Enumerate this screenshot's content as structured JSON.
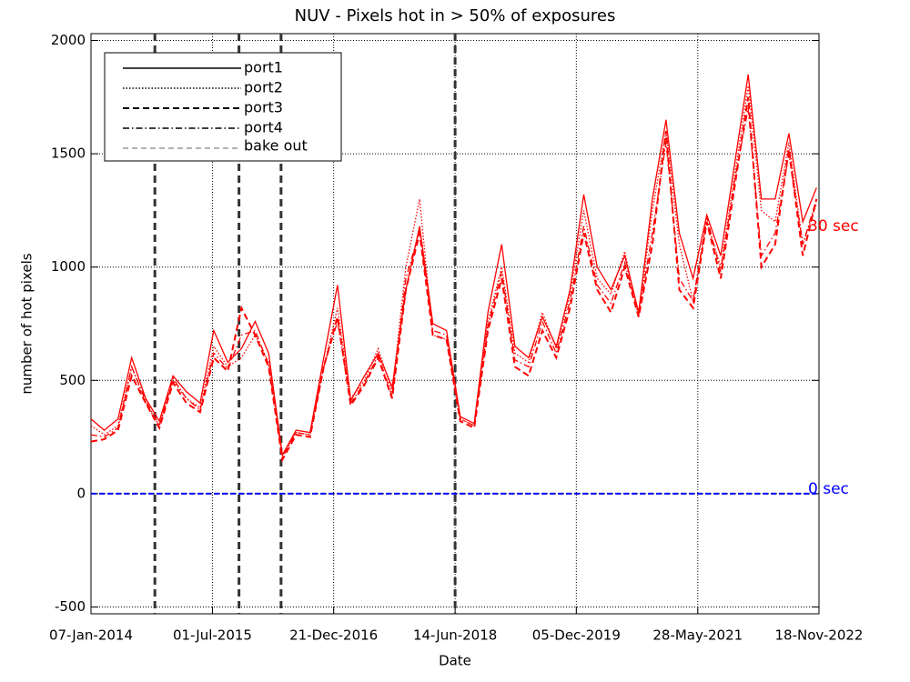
{
  "chart_data": {
    "type": "line",
    "title": "NUV - Pixels hot in > 50% of exposures",
    "x_label": "Date",
    "y_label": "number of hot pixels",
    "x": [
      "2014-01-07",
      "2014-03-07",
      "2014-05-07",
      "2014-07-07",
      "2014-09-07",
      "2014-11-07",
      "2015-01-07",
      "2015-03-07",
      "2015-05-07",
      "2015-07-07",
      "2015-09-07",
      "2015-11-07",
      "2016-01-07",
      "2016-03-07",
      "2016-05-07",
      "2016-07-07",
      "2016-09-07",
      "2016-11-07",
      "2017-01-07",
      "2017-03-07",
      "2017-05-07",
      "2017-07-07",
      "2017-09-07",
      "2017-11-07",
      "2018-01-07",
      "2018-03-07",
      "2018-05-07",
      "2018-07-07",
      "2018-09-07",
      "2018-11-07",
      "2019-01-07",
      "2019-03-07",
      "2019-05-07",
      "2019-07-07",
      "2019-09-07",
      "2019-11-07",
      "2020-01-07",
      "2020-03-07",
      "2020-05-07",
      "2020-07-07",
      "2020-09-07",
      "2020-11-07",
      "2021-01-07",
      "2021-03-07",
      "2021-05-07",
      "2021-07-07",
      "2021-09-07",
      "2021-11-07",
      "2022-01-07",
      "2022-03-07",
      "2022-05-07",
      "2022-07-07",
      "2022-09-07",
      "2022-11-07"
    ],
    "series": [
      {
        "name": "port1",
        "color": "#ff0000",
        "style": "solid",
        "values": [
          330,
          280,
          330,
          600,
          420,
          320,
          520,
          450,
          400,
          720,
          580,
          640,
          760,
          620,
          170,
          280,
          270,
          600,
          920,
          410,
          520,
          620,
          470,
          900,
          1180,
          750,
          720,
          340,
          310,
          800,
          1100,
          650,
          600,
          780,
          650,
          900,
          1320,
          1000,
          900,
          1050,
          800,
          1300,
          1650,
          1150,
          950,
          1230,
          1050,
          1450,
          1850,
          1300,
          1300,
          1590,
          1200,
          1350
        ]
      },
      {
        "name": "port2",
        "color": "#ff0000",
        "style": "dotted",
        "values": [
          300,
          260,
          300,
          560,
          400,
          300,
          500,
          420,
          380,
          650,
          560,
          600,
          700,
          580,
          170,
          270,
          260,
          560,
          820,
          420,
          500,
          640,
          450,
          1000,
          1300,
          700,
          680,
          330,
          300,
          760,
          1000,
          620,
          580,
          800,
          640,
          880,
          1250,
          950,
          880,
          1070,
          780,
          1250,
          1600,
          1100,
          850,
          1200,
          1000,
          1400,
          1800,
          1250,
          1200,
          1550,
          1100,
          1280
        ]
      },
      {
        "name": "port3",
        "color": "#ff0000",
        "style": "dashed",
        "values": [
          230,
          240,
          280,
          520,
          400,
          290,
          490,
          400,
          360,
          600,
          540,
          820,
          700,
          560,
          150,
          260,
          250,
          560,
          780,
          390,
          480,
          600,
          420,
          900,
          1150,
          700,
          680,
          320,
          290,
          720,
          950,
          560,
          520,
          720,
          600,
          820,
          1150,
          900,
          800,
          1000,
          780,
          1100,
          1600,
          900,
          820,
          1200,
          950,
          1350,
          1750,
          1000,
          1100,
          1520,
          1050,
          1300
        ]
      },
      {
        "name": "port4",
        "color": "#ff0000",
        "style": "dashdot",
        "values": [
          260,
          250,
          290,
          560,
          410,
          300,
          510,
          420,
          370,
          620,
          550,
          700,
          720,
          570,
          160,
          270,
          260,
          560,
          760,
          400,
          490,
          610,
          430,
          950,
          1160,
          720,
          700,
          330,
          300,
          740,
          980,
          590,
          560,
          760,
          620,
          850,
          1180,
          920,
          840,
          1020,
          790,
          1150,
          1550,
          950,
          850,
          1220,
          980,
          1380,
          1700,
          1050,
          1150,
          1500,
          1100,
          1300
        ]
      }
    ],
    "baseline_color": "#0000ff",
    "baseline_values": [
      0,
      0,
      0,
      0,
      0,
      0,
      0,
      0,
      0,
      0,
      0,
      0,
      0,
      0,
      0,
      0,
      0,
      0,
      0,
      0,
      0,
      0,
      0,
      0,
      0,
      0,
      0,
      0,
      0,
      0,
      0,
      0,
      0,
      0,
      0,
      0,
      0,
      0,
      0,
      0,
      0,
      0,
      0,
      0,
      0,
      0,
      0,
      0,
      0,
      0,
      0,
      0,
      0,
      0
    ],
    "bakeout_label": "bake out",
    "bakeouts": [
      "2014-10-18",
      "2015-10-27",
      "2016-05-01",
      "2018-06-14"
    ],
    "annotations": [
      {
        "text": "30 sec",
        "color": "#ff0000",
        "y": 1180
      },
      {
        "text": "0 sec",
        "color": "#0000ff",
        "y": 20
      }
    ],
    "xlim": [
      "2014-01-07",
      "2022-11-18"
    ],
    "xticks": [
      {
        "value": "2014-01-07",
        "label": "07-Jan-2014"
      },
      {
        "value": "2015-07-01",
        "label": "01-Jul-2015"
      },
      {
        "value": "2016-12-21",
        "label": "21-Dec-2016"
      },
      {
        "value": "2018-06-14",
        "label": "14-Jun-2018"
      },
      {
        "value": "2019-12-05",
        "label": "05-Dec-2019"
      },
      {
        "value": "2021-05-28",
        "label": "28-May-2021"
      },
      {
        "value": "2022-11-18",
        "label": "18-Nov-2022"
      }
    ],
    "ylim": [
      -530,
      2030
    ],
    "yticks": [
      -500,
      0,
      500,
      1000,
      1500,
      2000
    ],
    "grid": true
  }
}
